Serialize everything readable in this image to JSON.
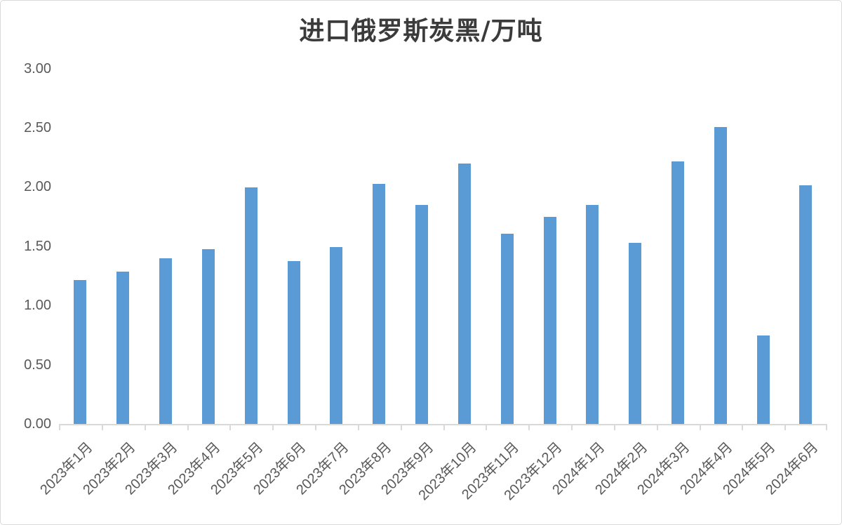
{
  "chart_data": {
    "type": "bar",
    "title": "进口俄罗斯炭黑/万吨",
    "categories": [
      "2023年1月",
      "2023年2月",
      "2023年3月",
      "2023年4月",
      "2023年5月",
      "2023年6月",
      "2023年7月",
      "2023年8月",
      "2023年9月",
      "2023年10月",
      "2023年11月",
      "2023年12月",
      "2024年1月",
      "2024年2月",
      "2024年3月",
      "2024年4月",
      "2024年5月",
      "2024年6月"
    ],
    "values": [
      1.22,
      1.29,
      1.4,
      1.48,
      2.0,
      1.38,
      1.5,
      2.03,
      1.85,
      2.2,
      1.61,
      1.75,
      1.85,
      1.53,
      2.22,
      2.51,
      0.75,
      2.02
    ],
    "xlabel": "",
    "ylabel": "",
    "ylim": [
      0,
      3
    ],
    "ytick_step": 0.5,
    "ytick_labels": [
      "3.00",
      "2.50",
      "2.00",
      "1.50",
      "1.00",
      "0.50",
      "0.00"
    ],
    "grid": false,
    "legend": "none",
    "colors": {
      "bar": "#5B9BD5",
      "axis": "#D9D9D9",
      "tick_text": "#595959",
      "title_text": "#3B3B3B"
    }
  }
}
